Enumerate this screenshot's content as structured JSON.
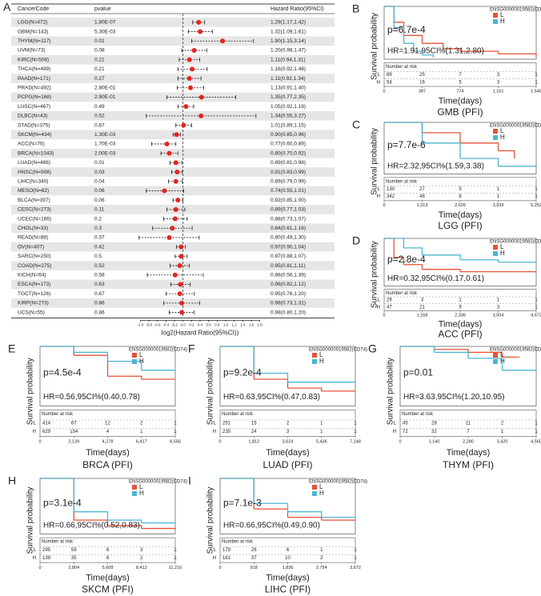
{
  "chart_data": [
    {
      "type": "forest",
      "panel": "A",
      "columns": [
        "CancerCode",
        "pvalue",
        "Hazard Ratio(95%CI)"
      ],
      "categories": [
        "LGG(N=472)",
        "GBM(N=143)",
        "THYM(N=117)",
        "UVM(N=73)",
        "KIRC(N=508)",
        "THCA(N=499)",
        "PAAD(N=171)",
        "PRAD(N=492)",
        "PCPG(N=168)",
        "LUSC(N=467)",
        "DLBC(N=43)",
        "STAD(N=375)",
        "SKCM(N=434)",
        "ACC(N=76)",
        "BRCA(N=1043)",
        "LUAD(N=486)",
        "HNSC(N=508)",
        "LIHC(N=340)",
        "MESO(N=82)",
        "BLCA(N=397)",
        "CESC(N=273)",
        "UCEC(N=166)",
        "CHOL(N=33)",
        "READ(N=88)",
        "OV(N=407)",
        "SARC(N=250)",
        "COAD(N=275)",
        "KICH(N=64)",
        "ESCA(N=173)",
        "TGCT(N=126)",
        "KIRP(N=273)",
        "UCS(N=55)"
      ],
      "pvalues": [
        "1.80E-07",
        "5.30E-03",
        "0.01",
        "0.08",
        "0.21",
        "0.21",
        "0.27",
        "2.80E-01",
        "2.90E-01",
        "0.49",
        "0.52",
        "0.87",
        "1.30E-03",
        "1.70E-03",
        "2.00E-03",
        "0.01",
        "0.03",
        "0.04",
        "0.06",
        "0.06",
        "0.11",
        "0.2",
        "0.3",
        "0.37",
        "0.42",
        "0.5",
        "0.52",
        "0.58",
        "0.63",
        "0.67",
        "0.86",
        "0.86"
      ],
      "hr_labels": [
        "1.29(1.17,1.42)",
        "1.32(1.09,1.61)",
        "1.90(1.15,3.14)",
        "1.20(0.98,1.47)",
        "1.11(0.94,1.31)",
        "1.16(0.92,1.48)",
        "1.11(0.92,1.34)",
        "1.13(0.91,1.40)",
        "1.35(0.77,2.35)",
        "1.05(0.92,1.19)",
        "1.34(0.55,3.27)",
        "1.01(0.89,1.15)",
        "0.90(0.85,0.96)",
        "0.77(0.60,0.89)",
        "0.80(0.70,0.92)",
        "0.89(0.81,0.98)",
        "0.91(0.83,0.99)",
        "0.89(0.79,0.99)",
        "0.74(0.55,1.01)",
        "0.92(0.85,1.00)",
        "0.89(0.77,1.03)",
        "0.88(0.73,1.07)",
        "0.84(0.61,1.16)",
        "0.80(0.49,1.30)",
        "0.97(0.90,1.04)",
        "0.97(0.88,1.07)",
        "0.95(0.81,1.11)",
        "0.88(0.56,1.39)",
        "0.96(0.82,1.12)",
        "0.95(0.76,1.20)",
        "0.98(0.73,1.31)",
        "0.98(0.80,1.20)"
      ],
      "values": [
        0.367,
        0.401,
        0.926,
        0.263,
        0.151,
        0.214,
        0.151,
        0.176,
        0.433,
        0.07,
        0.422,
        0.014,
        -0.152,
        -0.377,
        -0.322,
        -0.168,
        -0.136,
        -0.168,
        -0.434,
        -0.12,
        -0.168,
        -0.184,
        -0.252,
        -0.322,
        -0.044,
        -0.044,
        -0.074,
        -0.184,
        -0.059,
        -0.074,
        -0.029,
        -0.029
      ],
      "lower": [
        0.227,
        0.124,
        0.202,
        -0.029,
        -0.089,
        -0.12,
        -0.12,
        -0.136,
        -0.377,
        -0.12,
        -0.862,
        -0.168,
        -0.234,
        -0.737,
        -0.515,
        -0.304,
        -0.269,
        -0.34,
        -0.862,
        -0.234,
        -0.377,
        -0.454,
        -0.713,
        -1.029,
        -0.152,
        -0.184,
        -0.304,
        -0.837,
        -0.286,
        -0.396,
        -0.454,
        -0.322
      ],
      "upper": [
        0.506,
        0.687,
        1.651,
        0.556,
        0.39,
        0.566,
        0.422,
        0.485,
        1.233,
        0.251,
        1.709,
        0.202,
        -0.059,
        -0.168,
        -0.12,
        -0.029,
        -0.015,
        -0.015,
        0.014,
        0,
        0.043,
        0.098,
        0.214,
        0.379,
        0.057,
        0.098,
        0.151,
        0.475,
        0.164,
        0.263,
        0.39,
        0.263
      ],
      "color": "#e8231f",
      "reference_line": 0,
      "xlim": [
        -1.1,
        1.9
      ],
      "xticks": [
        {
          "value": -1,
          "label": "-1.0"
        },
        -0.8,
        -0.6,
        -0.4,
        -0.2,
        {
          "value": 0,
          "label": "0.0"
        },
        0.2,
        0.4,
        0.6,
        0.8,
        {
          "value": 1,
          "label": "1.0"
        },
        1.2,
        1.4,
        1.6,
        1.8
      ],
      "xlabel": "log2(Hazard Ratio(95%CI))"
    },
    {
      "type": "km",
      "panel": "B",
      "title": "GMB (PFI)",
      "gene": "ENSG00000019582(CD74)",
      "pvalue": "p=6.7e-4",
      "hr": "HR=1.91,95CI%(1.31,2.80)",
      "ylabel": "Survival probability",
      "xlabel": "Time(days)",
      "risk_title": "Number at risk",
      "xlim": [
        0,
        1548
      ],
      "ylim": [
        0,
        1
      ],
      "xticks": [
        0,
        387,
        774,
        {
          "value": 1161,
          "label": "1,161"
        },
        {
          "value": 1548,
          "label": "1,548"
        }
      ],
      "series": [
        {
          "name": "L",
          "color": "#e5533a",
          "x": [
            0,
            100,
            200,
            387,
            600,
            774,
            1161,
            1548
          ],
          "values": [
            1,
            0.7,
            0.45,
            0.3,
            0.2,
            0.15,
            0.1,
            0.05
          ],
          "at_risk": [
            89,
            25,
            7,
            3,
            1
          ]
        },
        {
          "name": "H",
          "color": "#4db6d3",
          "x": [
            0,
            100,
            200,
            300,
            387,
            500
          ],
          "values": [
            1,
            0.6,
            0.3,
            0.15,
            0.08,
            0.03
          ],
          "at_risk": [
            54,
            16,
            5,
            3,
            1
          ]
        }
      ]
    },
    {
      "type": "km",
      "panel": "C",
      "title": "LGG (PFI)",
      "gene": "ENSG00000019582(CD74)",
      "pvalue": "p=7.7e-6",
      "hr": "HR=2.32,95CI%(1.59,3.38)",
      "ylabel": "Survival probability",
      "xlabel": "Time(days)",
      "risk_title": "Number at risk",
      "xlim": [
        0,
        5252
      ],
      "ylim": [
        0,
        1
      ],
      "xticks": [
        0,
        {
          "value": 1313,
          "label": "1,313"
        },
        {
          "value": 2626,
          "label": "2,626"
        },
        {
          "value": 3939,
          "label": "3,939"
        },
        {
          "value": 5252,
          "label": "5,252"
        }
      ],
      "series": [
        {
          "name": "L",
          "color": "#e5533a",
          "x": [
            0,
            1313,
            2626,
            3939,
            4500
          ],
          "values": [
            1,
            0.8,
            0.6,
            0.45,
            0.3
          ],
          "at_risk": [
            130,
            27,
            5,
            1,
            1
          ]
        },
        {
          "name": "H",
          "color": "#4db6d3",
          "x": [
            0,
            1313,
            2626,
            3939,
            5252
          ],
          "values": [
            1,
            0.6,
            0.3,
            0.15,
            0.12
          ],
          "at_risk": [
            342,
            48,
            8,
            1,
            1
          ]
        }
      ]
    },
    {
      "type": "km",
      "panel": "D",
      "title": "ACC (PFI)",
      "gene": "ENSG00000019582(CD74)",
      "pvalue": "p=2.8e-4",
      "hr": "HR=0.32,95CI%(0.17,0.61)",
      "ylabel": "Survival probability",
      "xlabel": "Time(days)",
      "risk_title": "Number at risk",
      "xlim": [
        0,
        4672
      ],
      "ylim": [
        0,
        1
      ],
      "xticks": [
        0,
        {
          "value": 1168,
          "label": "1,168"
        },
        {
          "value": 2336,
          "label": "2,336"
        },
        {
          "value": 3504,
          "label": "3,504"
        },
        {
          "value": 4672,
          "label": "4,672"
        }
      ],
      "series": [
        {
          "name": "L",
          "color": "#e5533a",
          "x": [
            0,
            300,
            600,
            1168,
            2336,
            4672
          ],
          "values": [
            1,
            0.6,
            0.45,
            0.35,
            0.3,
            0.3
          ],
          "at_risk": [
            29,
            3,
            1,
            1,
            1
          ]
        },
        {
          "name": "H",
          "color": "#4db6d3",
          "x": [
            0,
            600,
            1168,
            2336,
            3504,
            4672
          ],
          "values": [
            1,
            0.8,
            0.65,
            0.55,
            0.5,
            0.5
          ],
          "at_risk": [
            47,
            21,
            9,
            3,
            1
          ]
        }
      ]
    },
    {
      "type": "km",
      "panel": "E",
      "title": "BRCA (PFI)",
      "gene": "ENSG00000019582(CD74)",
      "pvalue": "p=4.5e-4",
      "hr": "HR=0.56,95CI%(0.40,0.78)",
      "ylabel": "Survival probability",
      "xlabel": "Time(days)",
      "risk_title": "Number at risk",
      "xlim": [
        0,
        8556
      ],
      "ylim": [
        0,
        1
      ],
      "xticks": [
        0,
        {
          "value": 2139,
          "label": "2,139"
        },
        {
          "value": 4278,
          "label": "4,278"
        },
        {
          "value": 6417,
          "label": "6,417"
        },
        {
          "value": 8556,
          "label": "8,556"
        }
      ],
      "series": [
        {
          "name": "L",
          "color": "#e5533a",
          "x": [
            0,
            2139,
            4278,
            6417,
            8556
          ],
          "values": [
            1,
            0.85,
            0.5,
            0.45,
            0.45
          ],
          "at_risk": [
            414,
            67,
            12,
            2,
            1
          ]
        },
        {
          "name": "H",
          "color": "#4db6d3",
          "x": [
            0,
            2139,
            4278,
            6417,
            8556
          ],
          "values": [
            1,
            0.9,
            0.75,
            0.6,
            0.6
          ],
          "at_risk": [
            629,
            154,
            4,
            1,
            1
          ]
        }
      ]
    },
    {
      "type": "km",
      "panel": "F",
      "title": "LUAD (PFI)",
      "gene": "ENSG00000019582(CD74)",
      "pvalue": "p=9.2e-4",
      "hr": "HR=0.63,95CI%(0.47,0.83)",
      "ylabel": "Survival probability",
      "xlabel": "Time(days)",
      "risk_title": "Number at risk",
      "xlim": [
        0,
        7248
      ],
      "ylim": [
        0,
        1
      ],
      "xticks": [
        0,
        {
          "value": 1812,
          "label": "1,812"
        },
        {
          "value": 3624,
          "label": "3,624"
        },
        {
          "value": 5436,
          "label": "5,436"
        },
        {
          "value": 7248,
          "label": "7,248"
        }
      ],
      "series": [
        {
          "name": "L",
          "color": "#e5533a",
          "x": [
            0,
            1812,
            3624,
            5436,
            7248
          ],
          "values": [
            1,
            0.45,
            0.3,
            0.25,
            0.25
          ],
          "at_risk": [
            251,
            15,
            2,
            1,
            1
          ]
        },
        {
          "name": "H",
          "color": "#4db6d3",
          "x": [
            0,
            1812,
            3624,
            5436,
            7248
          ],
          "values": [
            1,
            0.55,
            0.4,
            0.4,
            0.4
          ],
          "at_risk": [
            235,
            24,
            3,
            1,
            1
          ]
        }
      ]
    },
    {
      "type": "km",
      "panel": "G",
      "title": "THYM (PFI)",
      "gene": "ENSG00000019582(CD74)",
      "pvalue": "p=0.01",
      "hr": "HR=3.63,95CI%(1.20,10.95)",
      "ylabel": "Survival probability",
      "xlabel": "Time(days)",
      "risk_title": "Number at risk",
      "xlim": [
        0,
        4560
      ],
      "ylim": [
        0,
        1
      ],
      "xticks": [
        0,
        {
          "value": 1140,
          "label": "1,140"
        },
        {
          "value": 2280,
          "label": "2,280"
        },
        {
          "value": 3420,
          "label": "3,420"
        },
        {
          "value": 4560,
          "label": "4,560"
        }
      ],
      "series": [
        {
          "name": "L",
          "color": "#e5533a",
          "x": [
            0,
            1140,
            2280,
            3420,
            4000
          ],
          "values": [
            1,
            0.95,
            0.9,
            0.82,
            0.82
          ],
          "at_risk": [
            45,
            28,
            11,
            2,
            1
          ]
        },
        {
          "name": "H",
          "color": "#4db6d3",
          "x": [
            0,
            1140,
            2280,
            3420,
            4560
          ],
          "values": [
            1,
            0.9,
            0.8,
            0.6,
            0.6
          ],
          "at_risk": [
            72,
            32,
            7,
            1,
            1
          ]
        }
      ]
    },
    {
      "type": "km",
      "panel": "H",
      "title": "SKCM (PFI)",
      "gene": "ENSG00000019582(CD74)",
      "pvalue": "p=3.1e-4",
      "hr": "HR=0.66,95CI%(0.52,0.83)",
      "ylabel": "Survival probability",
      "xlabel": "Time(days)",
      "risk_title": "Number at risk",
      "xlim": [
        0,
        11216
      ],
      "ylim": [
        0,
        1
      ],
      "xticks": [
        0,
        {
          "value": 2804,
          "label": "2,804"
        },
        {
          "value": 5608,
          "label": "5,608"
        },
        {
          "value": 8412,
          "label": "8,412"
        },
        {
          "value": 11216,
          "label": "11,216"
        }
      ],
      "series": [
        {
          "name": "L",
          "color": "#e5533a",
          "x": [
            0,
            2804,
            5608,
            8412,
            11216
          ],
          "values": [
            1,
            0.25,
            0.15,
            0.1,
            0.08
          ],
          "at_risk": [
            295,
            59,
            8,
            3,
            1
          ]
        },
        {
          "name": "H",
          "color": "#4db6d3",
          "x": [
            0,
            2804,
            5608,
            8412,
            11216
          ],
          "values": [
            1,
            0.4,
            0.25,
            0.2,
            0.2
          ],
          "at_risk": [
            139,
            35,
            8,
            2,
            1
          ]
        }
      ]
    },
    {
      "type": "km",
      "panel": "I",
      "title": "LIHC (PFI)",
      "gene": "ENSG00000019582(CD74)",
      "pvalue": "p=7.1e-3",
      "hr": "HR=0.66,95CI%(0.49,0.90)",
      "ylabel": "Survival probability",
      "xlabel": "Time(days)",
      "risk_title": "Number at risk",
      "xlim": [
        0,
        3672
      ],
      "ylim": [
        0,
        1
      ],
      "xticks": [
        0,
        {
          "value": 918,
          "label": "918"
        },
        {
          "value": 1836,
          "label": "1,836"
        },
        {
          "value": 2754,
          "label": "2,754"
        },
        {
          "value": 3672,
          "label": "3,672"
        }
      ],
      "series": [
        {
          "name": "L",
          "color": "#e5533a",
          "x": [
            0,
            918,
            1836,
            2754,
            3672
          ],
          "values": [
            1,
            0.45,
            0.3,
            0.25,
            0.25
          ],
          "at_risk": [
            179,
            26,
            6,
            1,
            1
          ]
        },
        {
          "name": "H",
          "color": "#4db6d3",
          "x": [
            0,
            918,
            1836,
            2754,
            3672
          ],
          "values": [
            1,
            0.55,
            0.4,
            0.3,
            0.3
          ],
          "at_risk": [
            161,
            37,
            10,
            2,
            1
          ]
        }
      ]
    }
  ]
}
